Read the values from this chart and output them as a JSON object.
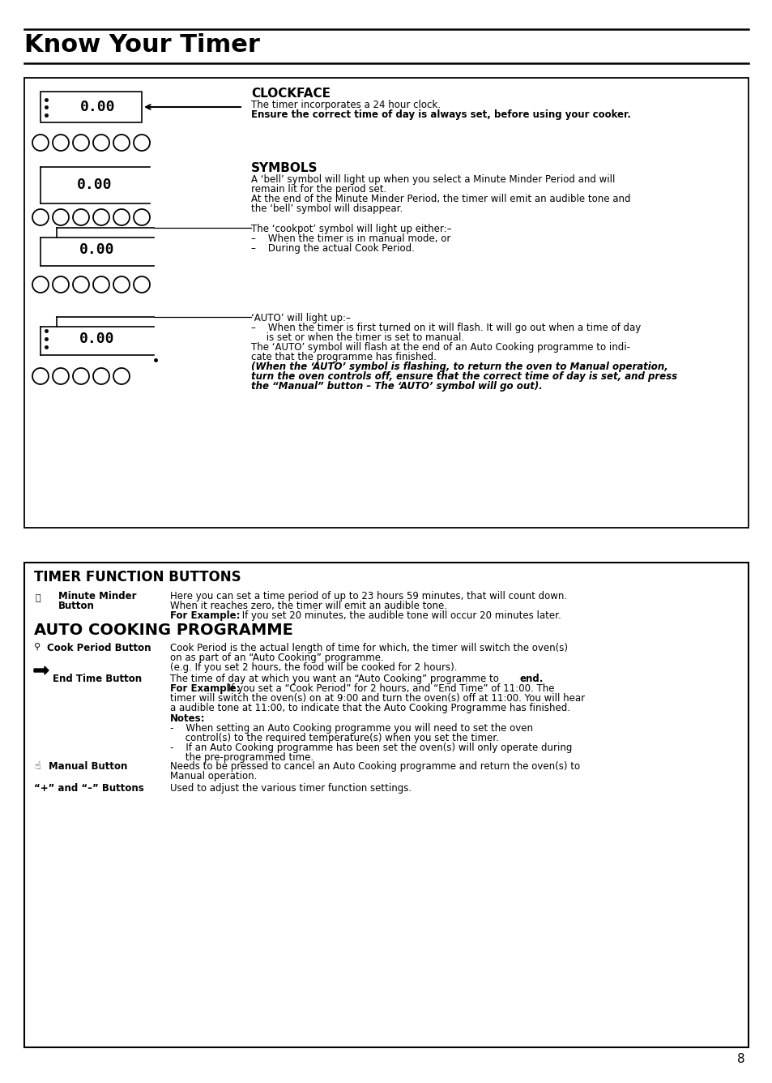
{
  "title": "Know Your Timer",
  "page_number": "8",
  "background": "#ffffff",
  "top_box": {
    "clockface_text": [
      "CLOCKFACE",
      "The timer incorporates a 24 hour clock.",
      "Ensure the correct time of day is always set, before using your cooker."
    ],
    "symbols_text1": [
      "SYMBOLS",
      "A ‘bell’ symbol will light up when you select a Minute Minder Period and will",
      "remain lit for the period set.",
      "At the end of the Minute Minder Period, the timer will emit an audible tone and",
      "the ‘bell’ symbol will disappear."
    ],
    "symbols_text2": [
      "The ‘cookpot’ symbol will light up either:–",
      "–    When the timer is in manual mode, or",
      "–    During the actual Cook Period."
    ],
    "auto_text": [
      "‘AUTO’ will light up:–",
      "–    When the timer is first turned on it will flash. It will go out when a time of day",
      "     is set or when the timer is set to manual.",
      "The ‘AUTO’ symbol will flash at the end of an Auto Cooking programme to indi-",
      "cate that the programme has finished.",
      "(When the ‘AUTO’ symbol is flashing, to return the oven to Manual operation,",
      "turn the oven controls off, ensure that the correct time of day is set, and press",
      "the “Manual” button – The ‘AUTO’ symbol will go out)."
    ]
  },
  "bottom_box": {
    "header1": "TIMER FUNCTION BUTTONS",
    "mm_label1": "Minute Minder",
    "mm_label2": "Button",
    "mm_text": [
      "Here you can set a time period of up to 23 hours 59 minutes, that will count down.",
      "When it reaches zero, the timer will emit an audible tone.",
      "For Example: If you set 20 minutes, the audible tone will occur 20 minutes later."
    ],
    "header2": "AUTO COOKING PROGRAMME",
    "cp_label": "Cook Period Button",
    "cp_text": [
      "Cook Period is the actual length of time for which, the timer will switch the oven(s)",
      "on as part of an “Auto Cooking” programme.",
      "(e.g. If you set 2 hours, the food will be cooked for 2 hours)."
    ],
    "et_label": "End Time Button",
    "et_text1": "The time of day at which you want an “Auto Cooking” programme to ",
    "et_text1_bold": "end.",
    "et_text2_bold": "For Example: ",
    "et_text2": "If you set a “Cook Period” for 2 hours, and “End Time” of 11:00. The",
    "et_text3": "timer will switch the oven(s) on at 9:00 and turn the oven(s) off at 11:00. You will hear",
    "et_text4": "a audible tone at 11:00, to indicate that the Auto Cooking Programme has finished.",
    "notes_header": "Notes:",
    "notes_lines": [
      "-    When setting an Auto Cooking programme you will need to set the oven",
      "     control(s) to the required temperature(s) when you set the timer.",
      "-    If an Auto Cooking programme has been set the oven(s) will only operate during",
      "     the pre-programmed time."
    ],
    "mb_label": "Manual Button",
    "mb_text": [
      "Needs to be pressed to cancel an Auto Cooking programme and return the oven(s) to",
      "Manual operation."
    ],
    "pm_label": "“+” and “–” Buttons",
    "pm_text": "Used to adjust the various timer function settings."
  }
}
